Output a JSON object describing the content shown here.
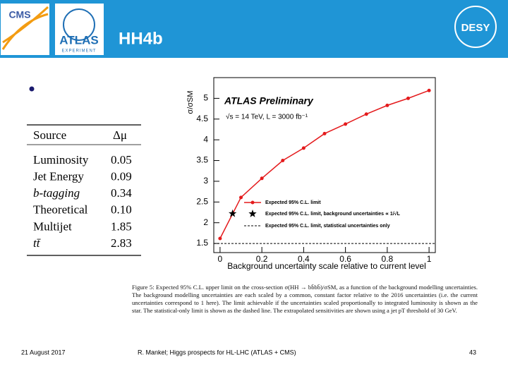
{
  "header": {
    "title": "HH4b",
    "logos": {
      "cms": "CMS",
      "atlas": "ATLAS",
      "atlas_sub": "EXPERIMENT",
      "desy": "DESY"
    }
  },
  "table": {
    "columns": [
      "Source",
      "Δμ"
    ],
    "rows": [
      [
        "Luminosity",
        "0.05"
      ],
      [
        "Jet Energy",
        "0.09"
      ],
      [
        "b-tagging",
        "0.34"
      ],
      [
        "Theoretical",
        "0.10"
      ],
      [
        "Multijet",
        "1.85"
      ],
      [
        "tt̄",
        "2.83"
      ]
    ]
  },
  "chart_data": {
    "type": "line",
    "annotations": [
      "ATLAS Preliminary",
      "√s = 14 TeV, L = 3000 fb⁻¹"
    ],
    "x_label": "Background uncertainty scale relative to current level",
    "y_label": "σ/σSM",
    "x": [
      0,
      0.1,
      0.2,
      0.3,
      0.4,
      0.5,
      0.6,
      0.7,
      0.8,
      0.9,
      1
    ],
    "series": [
      {
        "name": "Expected 95% C.L. limit",
        "color": "#e41a1c",
        "values": [
          1.62,
          2.61,
          3.07,
          3.5,
          3.8,
          4.15,
          4.38,
          4.62,
          4.83,
          5.0,
          5.19
        ]
      },
      {
        "name": "Expected 95% C.L. limit, background uncertainties ∝ 1/√L",
        "color": "#000000",
        "marker": "star",
        "x": [
          0.06
        ],
        "values": [
          2.22
        ]
      },
      {
        "name": "Expected 95% C.L. limit, statistical uncertainties only",
        "color": "#000000",
        "line_style": "dashed",
        "y": 1.5
      }
    ],
    "xlim": [
      -0.03,
      1.03
    ],
    "ylim": [
      1.28,
      5.5
    ],
    "xticks": [
      0,
      0.2,
      0.4,
      0.6,
      0.8,
      1
    ],
    "yticks": [
      1.5,
      2,
      2.5,
      3,
      3.5,
      4,
      4.5,
      5
    ]
  },
  "caption": "Figure 5: Expected 95% C.L. upper limit on the cross-section σ(HH → bb̄bb̄)/σSM, as a function of the background modelling uncertainties. The background modelling uncertainties are each scaled by a common, constant factor relative to the 2016 uncertainties (i.e. the current uncertainties correspond to 1 here). The limit achievable if the uncertainties scaled proportionally to integrated luminosity is shown as the star. The statistical-only limit is shown as the dashed line. The extrapolated sensitivities are shown using a jet pT threshold of 30 GeV.",
  "footer": {
    "date": "21 August 2017",
    "center": "R. Mankel; Higgs prospects for HL-LHC (ATLAS + CMS)",
    "page": "43"
  }
}
